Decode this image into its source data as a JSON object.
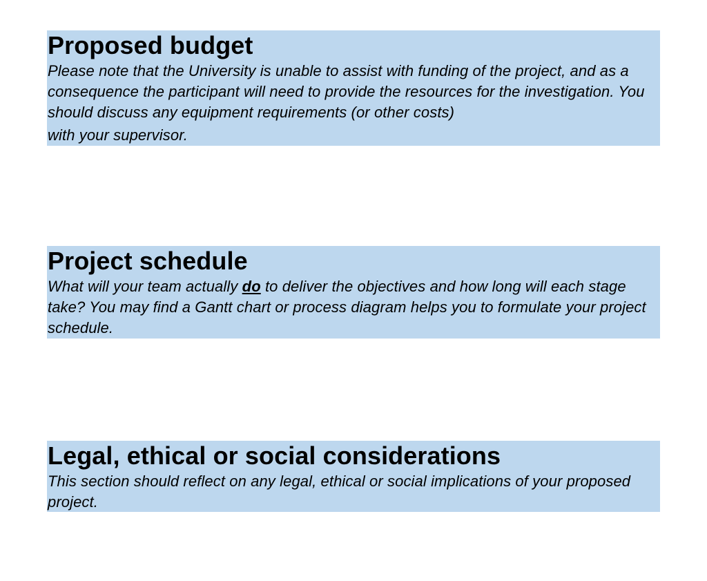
{
  "sections": [
    {
      "heading": "Proposed budget",
      "body_main": "Please note that the University is unable to assist with funding of the project, and as a consequence the participant will need to provide the resources for the investigation.  You should discuss any equipment requirements (or other costs)",
      "body_tail": "with your supervisor."
    },
    {
      "heading": "Project schedule",
      "body_pre": "What will your team actually ",
      "body_emph": "do",
      "body_post": " to deliver the objectives and how long will each stage take?  You may find a Gantt chart or process diagram helps you to formulate your project schedule."
    },
    {
      "heading": "Legal, ethical or social considerations",
      "body": "This section should reflect on any legal, ethical or social implications of your proposed project."
    }
  ],
  "colors": {
    "section_background": "#bdd7ee",
    "text": "#000000"
  }
}
